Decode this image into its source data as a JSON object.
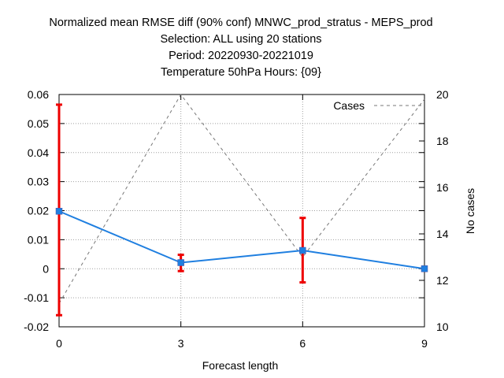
{
  "titles": [
    "Normalized mean RMSE diff (90% conf) MNWC_prod_stratus - MEPS_prod",
    "Selection: ALL using    20 stations",
    "Period: 20220930-20221019",
    "Temperature 50hPa   Hours: {09}"
  ],
  "chart_data": {
    "type": "line",
    "xlabel": "Forecast length",
    "ylabel": "",
    "y2label": "No cases",
    "xlim": [
      0,
      9
    ],
    "ylim": [
      -0.02,
      0.06
    ],
    "y2lim": [
      10,
      20
    ],
    "x_ticks": [
      0,
      3,
      6,
      9
    ],
    "y_ticks": [
      -0.02,
      -0.01,
      0,
      0.01,
      0.02,
      0.03,
      0.04,
      0.05,
      0.06
    ],
    "y_tick_labels": [
      "-0.02",
      "-0.01",
      "0",
      "0.01",
      "0.02",
      "0.03",
      "0.04",
      "0.05",
      "0.06"
    ],
    "y2_ticks": [
      10,
      12,
      14,
      16,
      18,
      20
    ],
    "grid": true,
    "legend_position": "top-right",
    "series": [
      {
        "axis": "left",
        "color": "#1f7fe0",
        "x": [
          0,
          3,
          6,
          9
        ],
        "y": [
          0.0198,
          0.0021,
          0.0063,
          0.0
        ],
        "err_low": [
          -0.016,
          -0.0008,
          -0.0047,
          0.0
        ],
        "err_high": [
          0.0565,
          0.0048,
          0.0175,
          0.0
        ],
        "err_color": "#ee0000"
      },
      {
        "name": "Cases",
        "axis": "right",
        "color": "#777777",
        "style": "dashed",
        "x": [
          0,
          3,
          6,
          9
        ],
        "y": [
          11,
          20,
          13,
          19.8
        ]
      }
    ]
  }
}
